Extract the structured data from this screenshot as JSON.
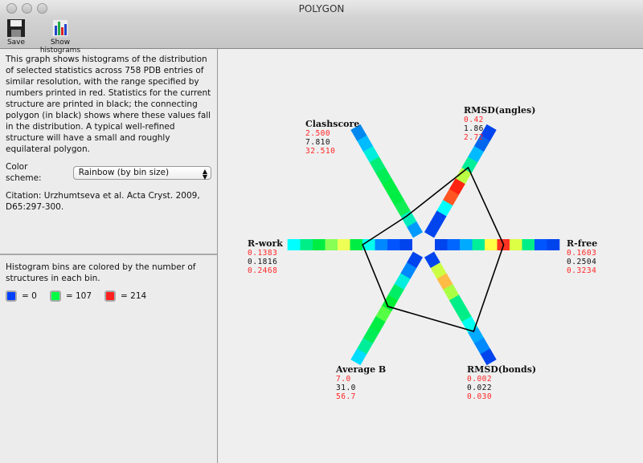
{
  "window": {
    "title": "POLYGON"
  },
  "toolbar": {
    "save_label": "Save",
    "histograms_label": "Show histograms"
  },
  "info": {
    "description": "This graph shows histograms of the distribution of selected statistics across 758 PDB entries of similar resolution, with the range specified by numbers printed in red.  Statistics for the current structure are printed in black; the connecting polygon (in black) shows where these values fall in the distribution. A typical well-refined structure will have a small and roughly equilateral polygon.",
    "color_scheme_label": "Color scheme:",
    "color_scheme_value": "Rainbow (by bin size)",
    "citation": "Citation: Urzhumtseva et al. Acta Cryst. 2009, D65:297-300."
  },
  "legend": {
    "text": "Histogram bins are colored by the number of structures in each bin.",
    "items": [
      {
        "color": "#0040ff",
        "label": "= 0"
      },
      {
        "color": "#00ff44",
        "label": "= 107"
      },
      {
        "color": "#ff2020",
        "label": "= 214"
      }
    ]
  },
  "chart_data": {
    "type": "polygon-histogram",
    "axes": [
      {
        "name": "R-free",
        "angle_deg": 0,
        "min": "0.1603",
        "value": "0.2504",
        "max": "0.3234",
        "bins": [
          "#0044ee",
          "#0066ff",
          "#00aaff",
          "#00ee99",
          "#ffff44",
          "#ff3322",
          "#ddff44",
          "#00ee88",
          "#0055ff",
          "#0044ee"
        ]
      },
      {
        "name": "RMSD(angles)",
        "angle_deg": 60,
        "min": "0.42",
        "value": "1.86",
        "max": "2.72",
        "bins": [
          "#0044ee",
          "#0044ee",
          "#00ffff",
          "#ff5522",
          "#ff2211",
          "#bbff44",
          "#00ee99",
          "#00bbff",
          "#0066ee",
          "#0044ee"
        ]
      },
      {
        "name": "Clashscore",
        "angle_deg": 120,
        "min": "2.500",
        "value": "7.810",
        "max": "32.510",
        "bins": [
          "#0099ff",
          "#00eebb",
          "#11ee55",
          "#00ee44",
          "#00ee44",
          "#00ee55",
          "#00ee77",
          "#00eedd",
          "#00bbff",
          "#0088ee"
        ]
      },
      {
        "name": "R-work",
        "angle_deg": 180,
        "min": "0.1383",
        "value": "0.1816",
        "max": "0.2468",
        "bins": [
          "#0044ee",
          "#0055ff",
          "#0088ff",
          "#00ffee",
          "#00ee44",
          "#eeff55",
          "#88ff55",
          "#00ee44",
          "#00ee88",
          "#00ffff"
        ]
      },
      {
        "name": "Average B",
        "angle_deg": 240,
        "min": "7.0",
        "value": "31.0",
        "max": "56.7",
        "bins": [
          "#0044ee",
          "#0088ff",
          "#00eedd",
          "#00ee66",
          "#00ee33",
          "#55ff44",
          "#00ee44",
          "#00ee55",
          "#00ee99",
          "#00ddff"
        ]
      },
      {
        "name": "RMSD(bonds)",
        "angle_deg": 300,
        "min": "0.002",
        "value": "0.022",
        "max": "0.030",
        "bins": [
          "#0044ee",
          "#ccff44",
          "#ffbb44",
          "#aaff44",
          "#00ee88",
          "#00ee88",
          "#00ffee",
          "#00aaff",
          "#0088ff",
          "#0044ee"
        ]
      }
    ]
  }
}
